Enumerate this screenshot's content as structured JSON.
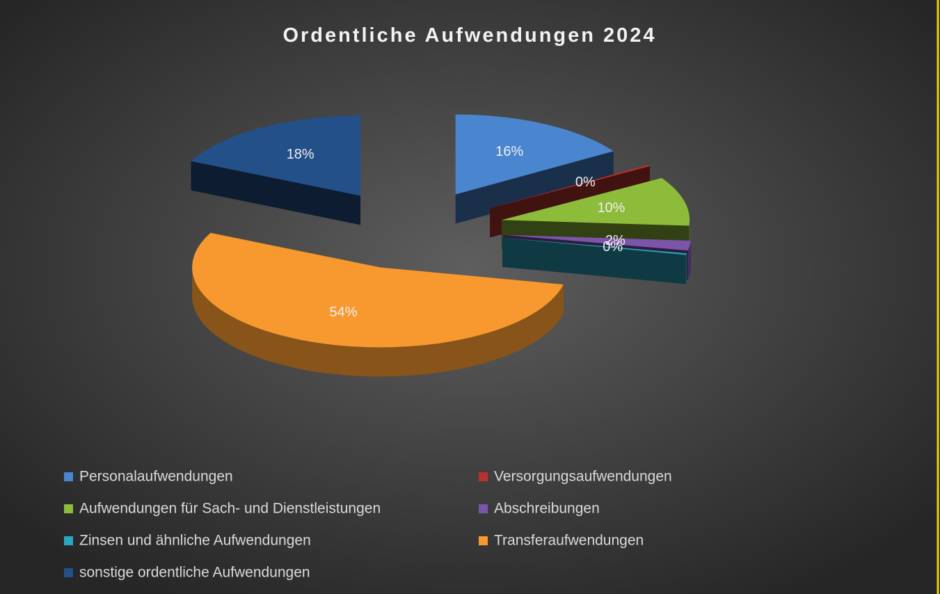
{
  "chart_data": {
    "type": "pie3d",
    "title": "Ordentliche Aufwendungen 2024",
    "categories": [
      "Personalaufwendungen",
      "Versorgungsaufwendungen",
      "Aufwendungen für Sach- und Dienstleistungen",
      "Abschreibungen",
      "Zinsen und ähnliche Aufwendungen",
      "Transferaufwendungen",
      "sonstige ordentliche Aufwendungen"
    ],
    "values": [
      16,
      0.3,
      10,
      2,
      0.3,
      54,
      18
    ],
    "value_labels": [
      "16%",
      "0%",
      "10%",
      "2%",
      "0%",
      "54%",
      "18%"
    ],
    "colors": [
      "#4a86d0",
      "#b8322f",
      "#8dbb3a",
      "#7b55aa",
      "#2ba6c2",
      "#f7992e",
      "#24508a"
    ],
    "legend": "bottom"
  }
}
